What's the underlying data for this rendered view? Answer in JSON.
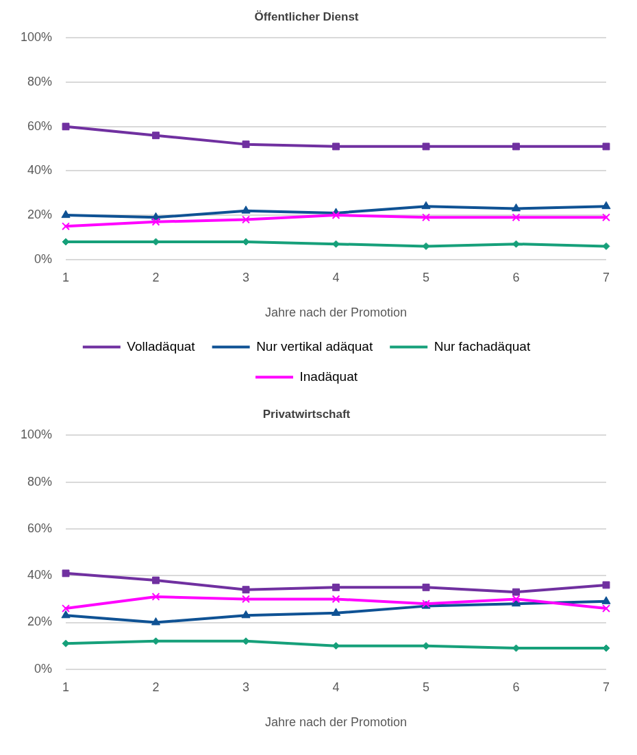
{
  "chart_data": [
    {
      "type": "line",
      "title": "Öffentlicher Dienst",
      "xlabel": "Jahre nach der Promotion",
      "categories": [
        "1",
        "2",
        "3",
        "4",
        "5",
        "6",
        "7"
      ],
      "ylim": [
        0,
        100
      ],
      "yticks": [
        {
          "value": 0,
          "label": "0%"
        },
        {
          "value": 20,
          "label": "20%"
        },
        {
          "value": 40,
          "label": "40%"
        },
        {
          "value": 60,
          "label": "60%"
        },
        {
          "value": 80,
          "label": "80%"
        },
        {
          "value": 100,
          "label": "100%"
        }
      ],
      "grid": "y",
      "legend": "bottom",
      "series": [
        {
          "name": "Volladäquat",
          "color": "#7030a0",
          "marker": "square",
          "values": [
            60,
            56,
            52,
            51,
            51,
            51,
            51
          ]
        },
        {
          "name": "Nur vertikal adäquat",
          "color": "#0f5294",
          "marker": "triangle",
          "values": [
            20,
            19,
            22,
            21,
            24,
            23,
            24
          ]
        },
        {
          "name": "Nur fachadäquat",
          "color": "#16a07a",
          "marker": "diamond",
          "values": [
            8,
            8,
            8,
            7,
            6,
            7,
            6
          ]
        },
        {
          "name": "Inadäquat",
          "color": "#ff00ff",
          "marker": "cross",
          "values": [
            15,
            17,
            18,
            20,
            19,
            19,
            19
          ]
        }
      ]
    },
    {
      "type": "line",
      "title": "Privatwirtschaft",
      "xlabel": "Jahre nach der Promotion",
      "categories": [
        "1",
        "2",
        "3",
        "4",
        "5",
        "6",
        "7"
      ],
      "ylim": [
        0,
        100
      ],
      "yticks": [
        {
          "value": 0,
          "label": "0%"
        },
        {
          "value": 20,
          "label": "20%"
        },
        {
          "value": 40,
          "label": "40%"
        },
        {
          "value": 60,
          "label": "60%"
        },
        {
          "value": 80,
          "label": "80%"
        },
        {
          "value": 100,
          "label": "100%"
        }
      ],
      "grid": "y",
      "series": [
        {
          "color": "#7030a0",
          "marker": "square",
          "values": [
            41,
            38,
            34,
            35,
            35,
            33,
            36
          ]
        },
        {
          "color": "#0f5294",
          "marker": "triangle",
          "values": [
            23,
            20,
            23,
            24,
            27,
            28,
            29
          ]
        },
        {
          "color": "#16a07a",
          "marker": "diamond",
          "values": [
            11,
            12,
            12,
            10,
            10,
            9,
            9
          ]
        },
        {
          "color": "#ff00ff",
          "marker": "cross",
          "values": [
            26,
            31,
            30,
            30,
            28,
            30,
            26
          ]
        }
      ]
    }
  ]
}
